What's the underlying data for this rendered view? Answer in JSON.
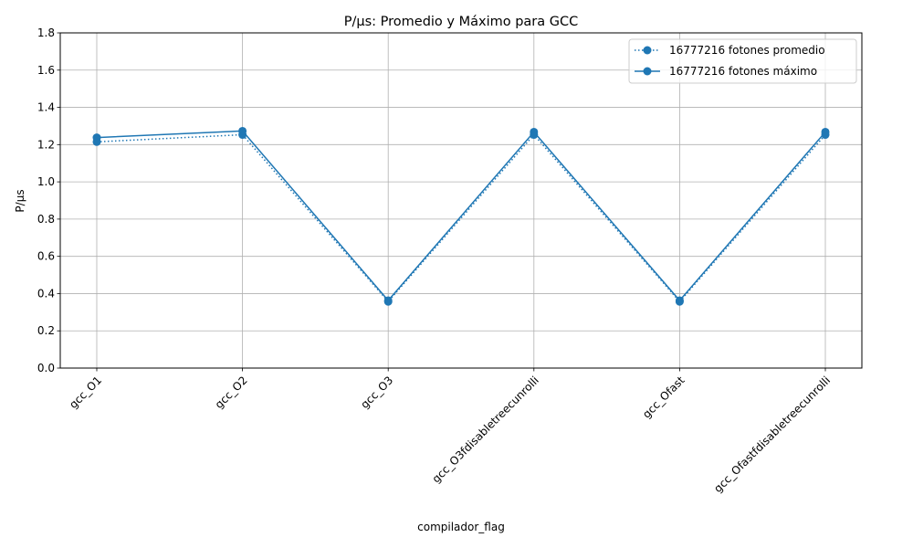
{
  "chart_data": {
    "type": "line",
    "title": "P/µs: Promedio y Máximo para GCC",
    "xlabel": "compilador_flag",
    "ylabel": "P/µs",
    "categories": [
      "gcc_O1",
      "gcc_O2",
      "gcc_O3",
      "gcc_O3fdisabletreecunrolli",
      "gcc_Ofast",
      "gcc_Ofastfdisabletreecunrolli"
    ],
    "ylim": [
      0,
      1.8
    ],
    "yticks": [
      "0.0",
      "0.2",
      "0.4",
      "0.6",
      "0.8",
      "1.0",
      "1.2",
      "1.4",
      "1.6",
      "1.8"
    ],
    "grid": true,
    "legend_position": "top-right",
    "series": [
      {
        "name": "16777216 fotones promedio",
        "style": "dotted",
        "marker": "circle",
        "color": "#1f77b4",
        "values": [
          1.215,
          1.253,
          0.357,
          1.253,
          0.357,
          1.253
        ]
      },
      {
        "name": "16777216 fotones máximo",
        "style": "solid",
        "marker": "circle",
        "color": "#1f77b4",
        "values": [
          1.238,
          1.273,
          0.363,
          1.268,
          0.363,
          1.268
        ]
      }
    ]
  }
}
